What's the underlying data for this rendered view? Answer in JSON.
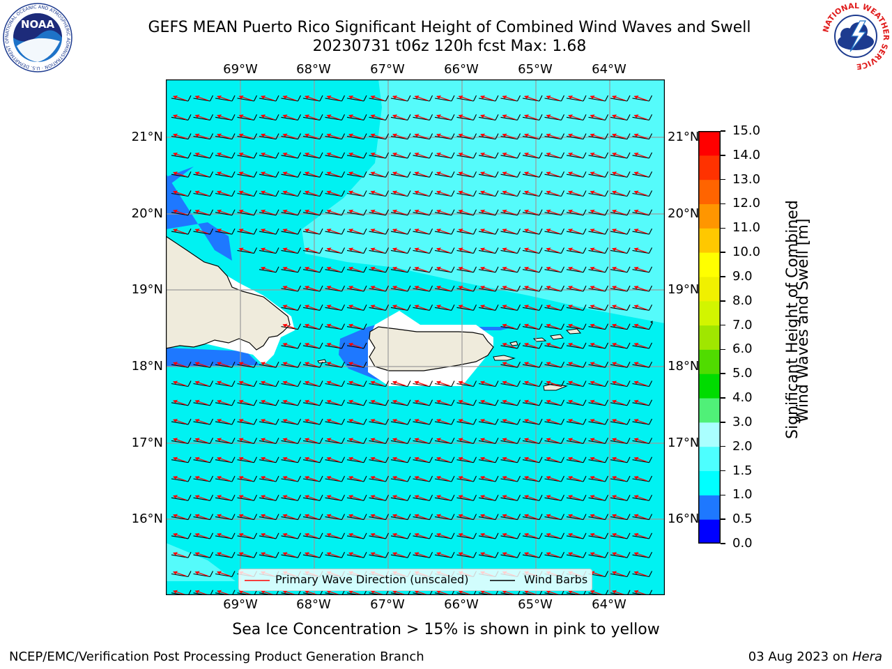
{
  "title": {
    "line1": "GEFS MEAN Puerto Rico Significant Height of Combined Wind Waves and Swell",
    "line2": "20230731 t06z 120h fcst   Max: 1.68"
  },
  "map": {
    "lon_labels": [
      "69°W",
      "68°W",
      "67°W",
      "66°W",
      "65°W",
      "64°W"
    ],
    "lat_labels": [
      "21°N",
      "20°N",
      "19°N",
      "18°N",
      "17°N",
      "16°N"
    ],
    "land_color": "#efebdc",
    "ocean_color": "#00ffff",
    "wave_arrow_color": "#ff0000",
    "barb_color": "#000000"
  },
  "legend": {
    "wave_direction": "Primary Wave Direction (unscaled)",
    "wind_barbs": "Wind Barbs"
  },
  "colorbar": {
    "label_line1": "Significant Height of Combined",
    "label_line2": "Wind Waves and Swell [m]",
    "ticks": [
      "0.0",
      "0.5",
      "1.0",
      "1.5",
      "2.0",
      "3.0",
      "4.0",
      "5.0",
      "6.0",
      "7.0",
      "8.0",
      "9.0",
      "10.0",
      "11.0",
      "12.0",
      "13.0",
      "14.0",
      "15.0"
    ],
    "colors": [
      "#0000ff",
      "#1e78ff",
      "#00ffff",
      "#4dffff",
      "#aaffff",
      "#50f078",
      "#00dc00",
      "#50dc00",
      "#a0e600",
      "#d2f500",
      "#f0f000",
      "#ffff00",
      "#ffc800",
      "#ff9600",
      "#ff6400",
      "#ff3200",
      "#ff0000"
    ]
  },
  "caption": "Sea Ice Concentration > 15% is shown in pink to yellow",
  "footer": {
    "left": "NCEP/EMC/Verification Post Processing Product Generation Branch",
    "date": "03 Aug 2023 on",
    "host": "Hera"
  },
  "logos": {
    "noaa": "NOAA",
    "noaa_ring": "NATIONAL OCEANIC AND ATMOSPHERIC ADMINISTRATION · U.S. DEPARTMENT OF COMMERCE",
    "nws_ring": "NATIONAL WEATHER SERVICE"
  }
}
